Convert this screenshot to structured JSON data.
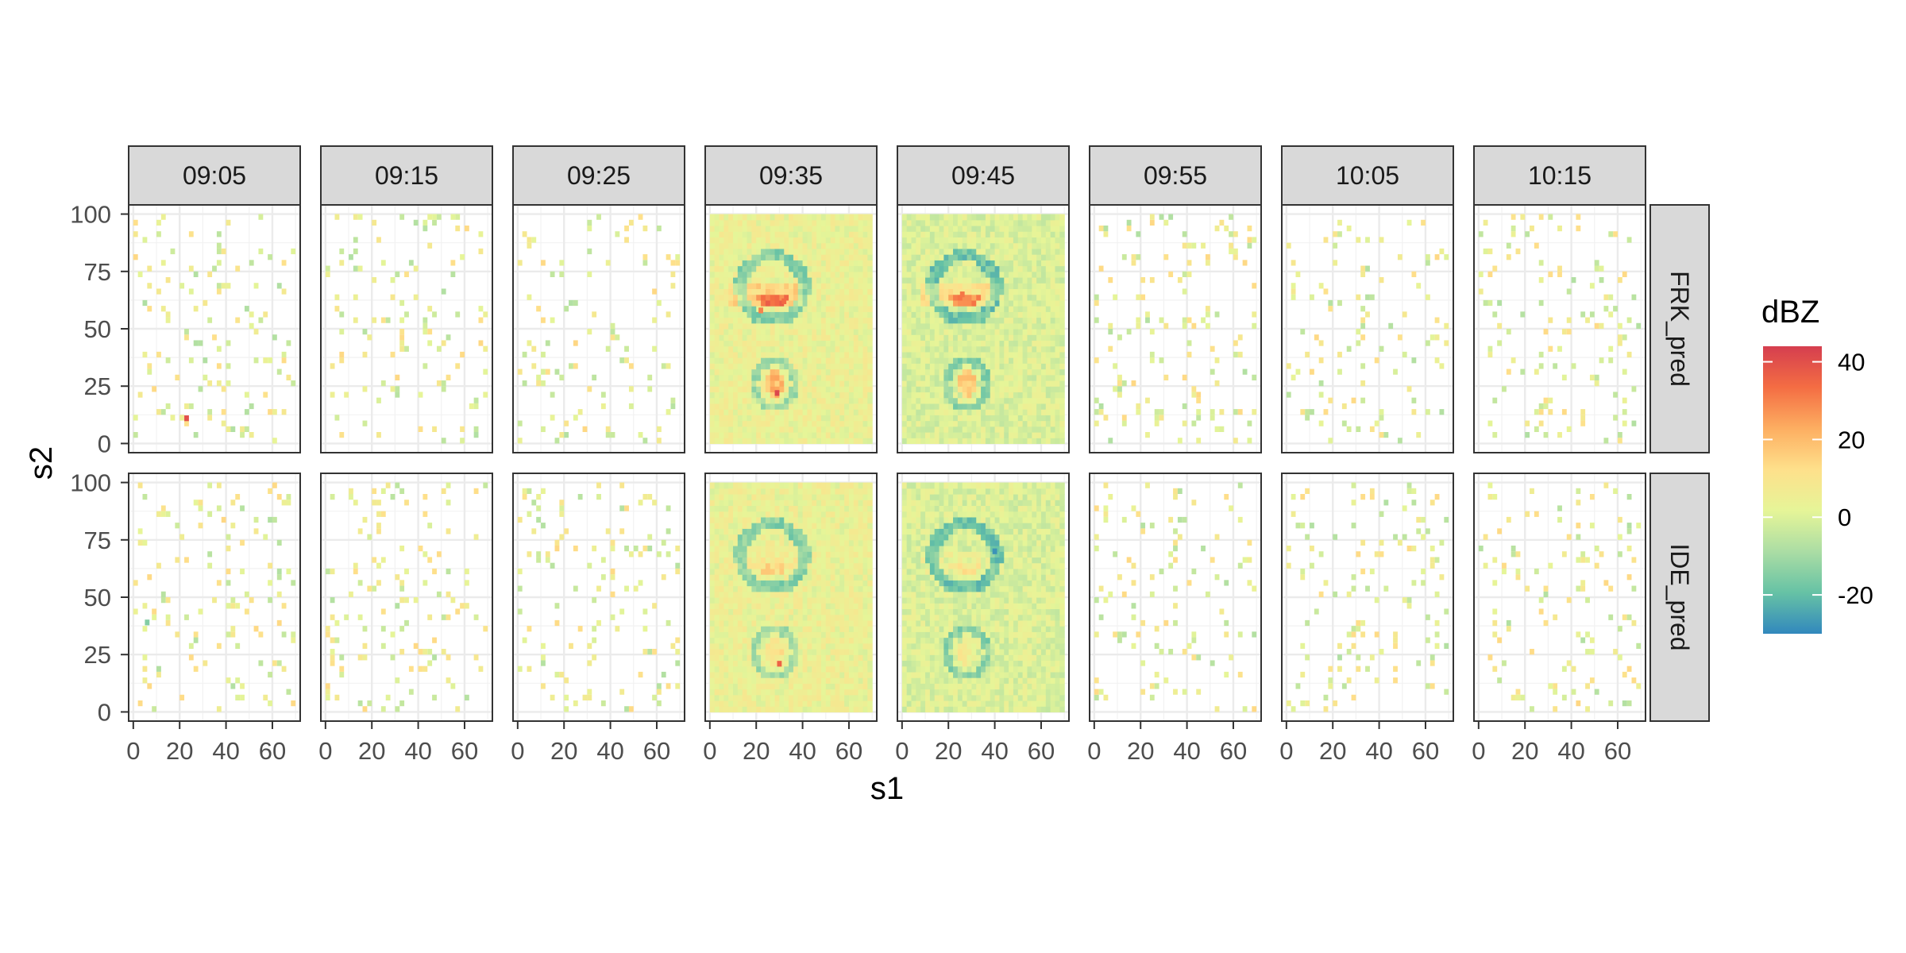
{
  "chart_data": {
    "type": "heatmap",
    "title": "",
    "xlabel": "s1",
    "ylabel": "s2",
    "xlim": [
      -2,
      72
    ],
    "ylim": [
      -4,
      104
    ],
    "x_ticks": [
      0,
      20,
      40,
      60
    ],
    "x_tick_labels": [
      "0",
      "20",
      "40",
      "60"
    ],
    "y_ticks": [
      0,
      25,
      50,
      75,
      100
    ],
    "y_tick_labels": [
      "0",
      "25",
      "50",
      "75",
      "100"
    ],
    "column_facets": [
      "09:05",
      "09:15",
      "09:25",
      "09:35",
      "09:45",
      "09:55",
      "10:05",
      "10:15"
    ],
    "row_facets": [
      "FRK_pred",
      "IDE_pred"
    ],
    "dense_facet": "09:35",
    "grid": true,
    "cell_size": [
      2,
      2.5
    ],
    "legend": {
      "title": "dBZ",
      "position": "right",
      "ticks": [
        40,
        20,
        0,
        -20
      ],
      "tick_labels": [
        "40",
        "20",
        "0",
        "-20"
      ],
      "min": -30,
      "max": 44,
      "colors": [
        "#3288bd",
        "#66c2a5",
        "#abdda4",
        "#e6f598",
        "#fee08b",
        "#fdae61",
        "#f46d43",
        "#d53e4f"
      ]
    },
    "highlights": [
      {
        "row": "FRK_pred",
        "facet": "09:05",
        "s1": 23,
        "s2": 11,
        "dBZ": 40
      },
      {
        "row": "FRK_pred",
        "facet": "09:35",
        "s1": 29,
        "s2": 22,
        "dBZ": 42
      },
      {
        "row": "FRK_pred",
        "facet": "09:35",
        "s1": 22,
        "s2": 58,
        "dBZ": 30
      },
      {
        "row": "FRK_pred",
        "facet": "09:35",
        "s1": 32,
        "s2": 62,
        "dBZ": 34
      },
      {
        "row": "FRK_pred",
        "facet": "09:45",
        "s1": 26,
        "s2": 65,
        "dBZ": 32
      },
      {
        "row": "IDE_pred",
        "facet": "09:05",
        "s1": 6,
        "s2": 39,
        "dBZ": -15
      },
      {
        "row": "IDE_pred",
        "facet": "09:35",
        "s1": 30,
        "s2": 21,
        "dBZ": 36
      },
      {
        "row": "IDE_pred",
        "facet": "09:45",
        "s1": 40,
        "s2": 70,
        "dBZ": -28
      }
    ]
  }
}
